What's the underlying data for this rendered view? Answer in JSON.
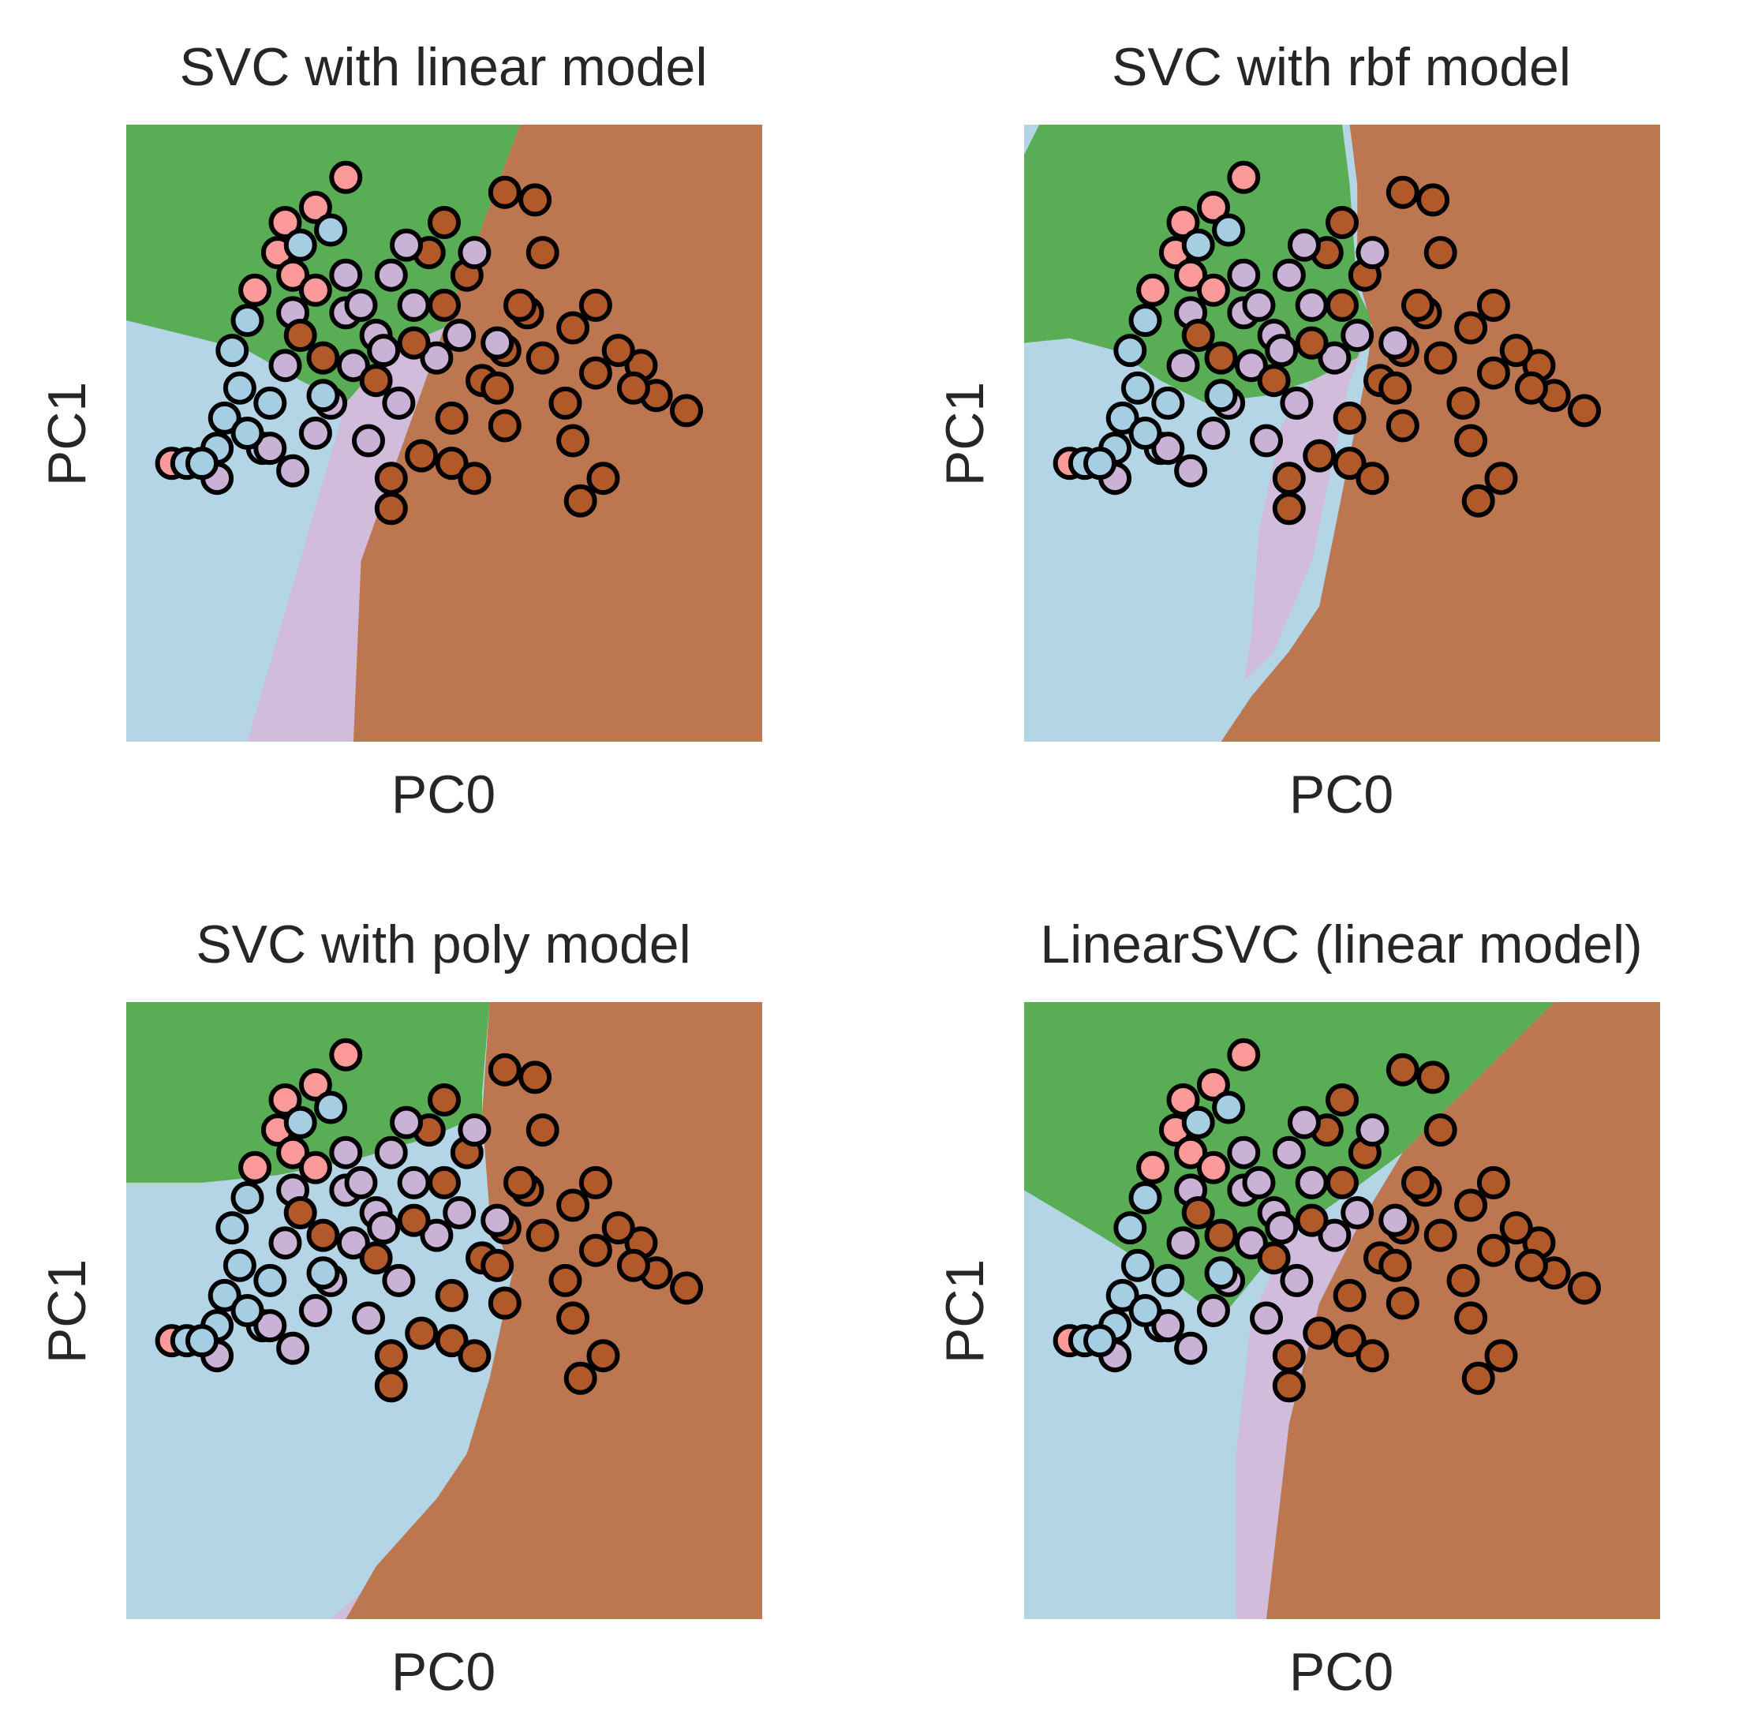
{
  "palette": {
    "class_0": "#b3d5e6",
    "class_1": "#59ae55",
    "class_2": "#d1bcdc",
    "class_3": "#bc7650",
    "point_class_0": "#a6cee3",
    "point_class_1": "#fb9a99",
    "point_class_2": "#cab2d6",
    "point_class_3": "#b15928",
    "point_edge": "#000000"
  },
  "chart_data": [
    {
      "type": "scatter",
      "title": "SVC with linear model",
      "xlabel": "PC0",
      "ylabel": "PC1",
      "xlim": [
        -1.2,
        3.0
      ],
      "ylim": [
        -2.9,
        1.2
      ],
      "grid": false,
      "ticks": false,
      "decision_regions": {
        "class_1": [
          [
            -1.2,
            -0.1
          ],
          [
            -0.8,
            -0.2
          ],
          [
            -0.4,
            -0.3
          ],
          [
            -0.05,
            -0.5
          ],
          [
            0.25,
            -0.65
          ],
          [
            0.55,
            -0.3
          ],
          [
            0.9,
            -0.15
          ],
          [
            1.4,
            1.2
          ],
          [
            -1.2,
            1.2
          ]
        ],
        "class_2": [
          [
            -0.4,
            -2.9
          ],
          [
            0.25,
            -0.65
          ],
          [
            0.55,
            -0.3
          ],
          [
            0.9,
            -0.15
          ],
          [
            0.35,
            -1.7
          ],
          [
            0.3,
            -2.9
          ]
        ],
        "class_3": [
          [
            0.3,
            -2.9
          ],
          [
            0.35,
            -1.7
          ],
          [
            0.9,
            -0.15
          ],
          [
            1.4,
            1.2
          ],
          [
            3.0,
            1.2
          ],
          [
            3.0,
            -2.9
          ]
        ]
      }
    },
    {
      "type": "scatter",
      "title": "SVC with rbf model",
      "xlabel": "PC0",
      "ylabel": "PC1",
      "xlim": [
        -1.2,
        3.0
      ],
      "ylim": [
        -2.9,
        1.2
      ],
      "grid": false,
      "ticks": false,
      "decision_regions": {
        "class_1": [
          [
            -1.1,
            1.2
          ],
          [
            0.9,
            1.2
          ],
          [
            0.95,
            0.8
          ],
          [
            1.0,
            0.1
          ],
          [
            1.1,
            -0.1
          ],
          [
            1.0,
            -0.35
          ],
          [
            0.7,
            -0.5
          ],
          [
            0.4,
            -0.6
          ],
          [
            0.0,
            -0.65
          ],
          [
            -0.3,
            -0.5
          ],
          [
            -0.6,
            -0.3
          ],
          [
            -0.9,
            -0.22
          ],
          [
            -1.2,
            -0.25
          ],
          [
            -1.2,
            1.0
          ]
        ],
        "class_2": [
          [
            0.7,
            -0.5
          ],
          [
            1.0,
            -0.35
          ],
          [
            1.1,
            -0.15
          ],
          [
            0.95,
            -0.5
          ],
          [
            0.7,
            -1.7
          ],
          [
            0.45,
            -2.3
          ],
          [
            0.25,
            -2.5
          ],
          [
            0.3,
            -2.2
          ],
          [
            0.35,
            -1.5
          ],
          [
            0.5,
            -0.8
          ]
        ],
        "class_3": [
          [
            0.95,
            1.2
          ],
          [
            3.0,
            1.2
          ],
          [
            3.0,
            -2.9
          ],
          [
            0.1,
            -2.9
          ],
          [
            0.3,
            -2.6
          ],
          [
            0.55,
            -2.3
          ],
          [
            0.75,
            -2.0
          ],
          [
            0.95,
            -1.0
          ],
          [
            1.05,
            -0.5
          ],
          [
            1.1,
            -0.15
          ],
          [
            1.0,
            0.2
          ],
          [
            1.0,
            0.8
          ]
        ]
      }
    },
    {
      "type": "scatter",
      "title": "SVC with poly model",
      "xlabel": "PC0",
      "ylabel": "PC1",
      "xlim": [
        -1.2,
        3.0
      ],
      "ylim": [
        -2.9,
        1.2
      ],
      "grid": false,
      "ticks": false,
      "decision_regions": {
        "class_1": [
          [
            -1.2,
            1.2
          ],
          [
            1.2,
            1.2
          ],
          [
            1.15,
            0.6
          ],
          [
            1.15,
            0.45
          ],
          [
            0.8,
            0.3
          ],
          [
            0.3,
            0.15
          ],
          [
            -0.2,
            0.05
          ],
          [
            -0.7,
            0.0
          ],
          [
            -1.2,
            0.0
          ]
        ],
        "class_2": [
          [
            0.15,
            -2.9
          ],
          [
            0.55,
            -2.55
          ],
          [
            0.7,
            -2.35
          ],
          [
            0.5,
            -2.55
          ],
          [
            0.35,
            -2.75
          ],
          [
            0.25,
            -2.9
          ]
        ],
        "class_3": [
          [
            1.2,
            1.2
          ],
          [
            3.0,
            1.2
          ],
          [
            3.0,
            -2.9
          ],
          [
            0.25,
            -2.9
          ],
          [
            0.45,
            -2.55
          ],
          [
            0.85,
            -2.1
          ],
          [
            1.05,
            -1.8
          ],
          [
            1.2,
            -1.3
          ],
          [
            1.35,
            -0.6
          ],
          [
            1.2,
            -0.2
          ],
          [
            1.15,
            0.45
          ]
        ]
      }
    },
    {
      "type": "scatter",
      "title": "LinearSVC (linear model)",
      "xlabel": "PC0",
      "ylabel": "PC1",
      "xlim": [
        -1.2,
        3.0
      ],
      "ylim": [
        -2.9,
        1.2
      ],
      "grid": false,
      "ticks": false,
      "decision_regions": {
        "class_1": [
          [
            -1.2,
            1.2
          ],
          [
            2.3,
            1.2
          ],
          [
            1.6,
            0.5
          ],
          [
            1.3,
            0.2
          ],
          [
            0.9,
            -0.1
          ],
          [
            0.55,
            -0.35
          ],
          [
            0.1,
            -0.9
          ],
          [
            -0.3,
            -0.6
          ],
          [
            -0.7,
            -0.35
          ],
          [
            -1.2,
            -0.05
          ]
        ],
        "class_2": [
          [
            0.2,
            -2.9
          ],
          [
            0.4,
            -2.9
          ],
          [
            0.55,
            -1.6
          ],
          [
            0.75,
            -0.8
          ],
          [
            1.0,
            -0.3
          ],
          [
            0.55,
            -0.35
          ],
          [
            0.3,
            -0.9
          ],
          [
            0.2,
            -1.8
          ]
        ],
        "class_3": [
          [
            0.4,
            -2.9
          ],
          [
            3.0,
            -2.9
          ],
          [
            3.0,
            1.2
          ],
          [
            2.3,
            1.2
          ],
          [
            1.6,
            0.5
          ],
          [
            1.3,
            0.2
          ],
          [
            1.0,
            -0.3
          ],
          [
            0.75,
            -0.8
          ],
          [
            0.55,
            -1.6
          ]
        ]
      }
    }
  ],
  "points": [
    {
      "x": -0.9,
      "y": -1.05,
      "c": 1
    },
    {
      "x": -0.8,
      "y": -1.05,
      "c": 0
    },
    {
      "x": -0.6,
      "y": -1.15,
      "c": 2
    },
    {
      "x": -0.55,
      "y": -0.75,
      "c": 0
    },
    {
      "x": -0.45,
      "y": -0.55,
      "c": 0
    },
    {
      "x": -0.5,
      "y": -0.3,
      "c": 0
    },
    {
      "x": -0.4,
      "y": -0.1,
      "c": 0
    },
    {
      "x": -0.35,
      "y": 0.1,
      "c": 1
    },
    {
      "x": -0.2,
      "y": 0.35,
      "c": 1
    },
    {
      "x": -0.15,
      "y": 0.55,
      "c": 1
    },
    {
      "x": -0.05,
      "y": 0.4,
      "c": 0
    },
    {
      "x": 0.05,
      "y": 0.65,
      "c": 1
    },
    {
      "x": -0.3,
      "y": -0.95,
      "c": 0
    },
    {
      "x": -0.25,
      "y": -0.65,
      "c": 0
    },
    {
      "x": -0.15,
      "y": -0.4,
      "c": 2
    },
    {
      "x": -0.1,
      "y": -0.05,
      "c": 2
    },
    {
      "x": -0.1,
      "y": 0.2,
      "c": 1
    },
    {
      "x": 0.05,
      "y": 0.1,
      "c": 1
    },
    {
      "x": -0.05,
      "y": -0.2,
      "c": 3
    },
    {
      "x": 0.1,
      "y": -0.35,
      "c": 3
    },
    {
      "x": -0.25,
      "y": -0.95,
      "c": 2
    },
    {
      "x": -0.1,
      "y": -1.1,
      "c": 2
    },
    {
      "x": 0.05,
      "y": -0.85,
      "c": 2
    },
    {
      "x": 0.15,
      "y": -0.65,
      "c": 2
    },
    {
      "x": 0.3,
      "y": -0.4,
      "c": 2
    },
    {
      "x": 0.25,
      "y": -0.05,
      "c": 2
    },
    {
      "x": 0.45,
      "y": -0.2,
      "c": 2
    },
    {
      "x": 0.55,
      "y": 0.2,
      "c": 2
    },
    {
      "x": 0.7,
      "y": 0.0,
      "c": 2
    },
    {
      "x": 0.85,
      "y": -0.35,
      "c": 2
    },
    {
      "x": 0.6,
      "y": -0.65,
      "c": 2
    },
    {
      "x": 0.4,
      "y": -0.9,
      "c": 2
    },
    {
      "x": 0.45,
      "y": -0.5,
      "c": 3
    },
    {
      "x": 0.7,
      "y": -0.25,
      "c": 3
    },
    {
      "x": 0.9,
      "y": 0.0,
      "c": 3
    },
    {
      "x": 0.8,
      "y": 0.35,
      "c": 3
    },
    {
      "x": 1.05,
      "y": 0.2,
      "c": 3
    },
    {
      "x": 1.3,
      "y": 0.75,
      "c": 3
    },
    {
      "x": 1.5,
      "y": 0.7,
      "c": 3
    },
    {
      "x": 1.55,
      "y": 0.35,
      "c": 3
    },
    {
      "x": 1.45,
      "y": -0.05,
      "c": 3
    },
    {
      "x": 1.3,
      "y": -0.3,
      "c": 3
    },
    {
      "x": 1.15,
      "y": -0.5,
      "c": 3
    },
    {
      "x": 0.95,
      "y": -0.75,
      "c": 3
    },
    {
      "x": 0.75,
      "y": -1.0,
      "c": 3
    },
    {
      "x": 0.55,
      "y": -1.15,
      "c": 3
    },
    {
      "x": 0.55,
      "y": -1.35,
      "c": 3
    },
    {
      "x": 0.95,
      "y": -1.05,
      "c": 3
    },
    {
      "x": 1.25,
      "y": -0.55,
      "c": 3
    },
    {
      "x": 1.55,
      "y": -0.35,
      "c": 3
    },
    {
      "x": 1.75,
      "y": -0.15,
      "c": 3
    },
    {
      "x": 1.9,
      "y": -0.45,
      "c": 3
    },
    {
      "x": 1.7,
      "y": -0.65,
      "c": 3
    },
    {
      "x": 1.75,
      "y": -0.9,
      "c": 3
    },
    {
      "x": 1.95,
      "y": -1.15,
      "c": 3
    },
    {
      "x": 1.8,
      "y": -1.3,
      "c": 3
    },
    {
      "x": 2.3,
      "y": -0.6,
      "c": 3
    },
    {
      "x": 2.5,
      "y": -0.7,
      "c": 3
    },
    {
      "x": 2.2,
      "y": -0.4,
      "c": 3
    },
    {
      "x": 1.3,
      "y": -0.8,
      "c": 3
    },
    {
      "x": 1.1,
      "y": -1.15,
      "c": 3
    },
    {
      "x": 1.0,
      "y": -0.2,
      "c": 2
    },
    {
      "x": 1.25,
      "y": -0.25,
      "c": 2
    },
    {
      "x": 1.1,
      "y": 0.35,
      "c": 2
    },
    {
      "x": 0.65,
      "y": 0.4,
      "c": 2
    },
    {
      "x": 0.25,
      "y": 0.2,
      "c": 2
    },
    {
      "x": 0.1,
      "y": -0.6,
      "c": 0
    },
    {
      "x": -0.4,
      "y": -0.85,
      "c": 0
    },
    {
      "x": -0.6,
      "y": -0.95,
      "c": 0
    },
    {
      "x": -0.7,
      "y": -1.05,
      "c": 0
    },
    {
      "x": 0.25,
      "y": 0.85,
      "c": 1
    },
    {
      "x": 0.15,
      "y": 0.5,
      "c": 0
    },
    {
      "x": 0.35,
      "y": 0.0,
      "c": 2
    },
    {
      "x": 0.5,
      "y": -0.3,
      "c": 2
    },
    {
      "x": 1.9,
      "y": 0.0,
      "c": 3
    },
    {
      "x": 2.05,
      "y": -0.3,
      "c": 3
    },
    {
      "x": 2.15,
      "y": -0.55,
      "c": 3
    },
    {
      "x": 1.4,
      "y": 0.0,
      "c": 3
    },
    {
      "x": 0.9,
      "y": 0.55,
      "c": 3
    }
  ]
}
